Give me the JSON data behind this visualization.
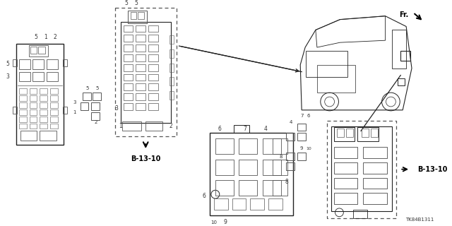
{
  "bg_color": "#ffffff",
  "line_color": "#555555",
  "dark_color": "#222222",
  "text_color": "#333333",
  "bold_color": "#000000",
  "part_number": "TK84B1311",
  "ref1": "B-13-10",
  "ref2": "B-13-10",
  "fr_text": "Fr.",
  "arrow_color": "#000000"
}
